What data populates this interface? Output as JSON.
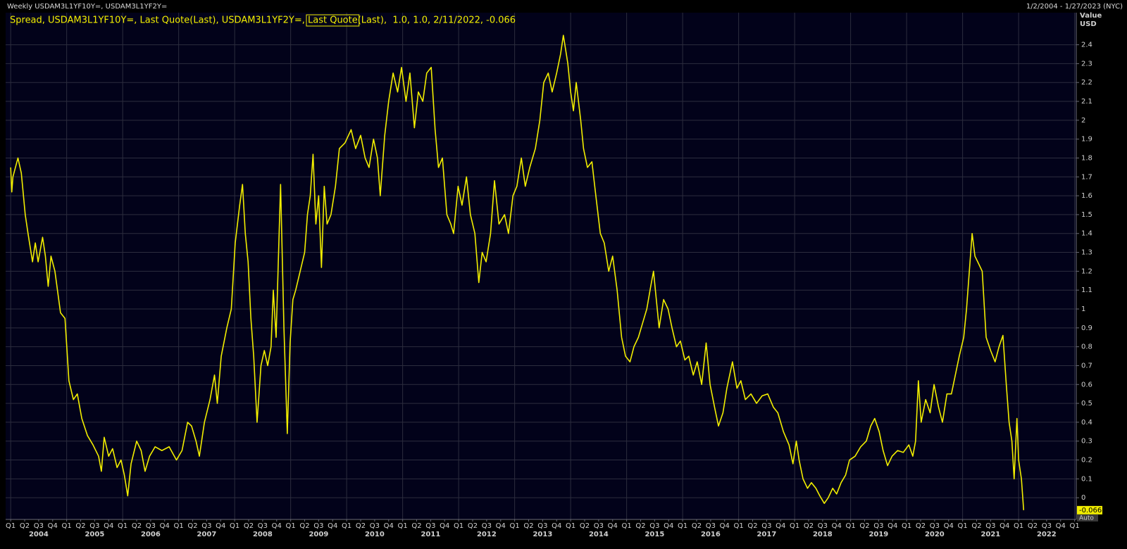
{
  "chart_data": {
    "type": "line",
    "header": "Weekly USDAM3L1YF10Y=, USDAM3L1YF2Y=",
    "date_range": "1/2/2004 - 1/27/2023 (NYC)",
    "legend_parts": [
      "Spread, USDAM3L1YF10Y=, Last Quote(Last), USDAM3L1YF2Y=, ",
      "Last Quote",
      "(Last),  1.0, 1.0, 2/11/2022, -0.066"
    ],
    "y_axis_label": [
      "Value",
      "USD"
    ],
    "auto_label": "Auto",
    "last_value_label": "-0.066",
    "color": "#f2ee00",
    "grid": true,
    "xlim": [
      2003.91,
      2023.03
    ],
    "ylim": [
      -0.115,
      2.57
    ],
    "yticks": [
      0,
      0.1,
      0.2,
      0.3,
      0.4,
      0.5,
      0.6,
      0.7,
      0.8,
      0.9,
      1,
      1.1,
      1.2,
      1.3,
      1.4,
      1.5,
      1.6,
      1.7,
      1.8,
      1.9,
      2,
      2.1,
      2.2,
      2.3,
      2.4
    ],
    "xticks": [
      {
        "value": 2004,
        "label": "Q1"
      },
      {
        "value": 2004.25,
        "label": "Q2"
      },
      {
        "value": 2004.5,
        "label": "Q3"
      },
      {
        "value": 2004.75,
        "label": "Q4"
      },
      {
        "value": 2005,
        "label": "Q1"
      },
      {
        "value": 2005.25,
        "label": "Q2"
      },
      {
        "value": 2005.5,
        "label": "Q3"
      },
      {
        "value": 2005.75,
        "label": "Q4"
      },
      {
        "value": 2006,
        "label": "Q1"
      },
      {
        "value": 2006.25,
        "label": "Q2"
      },
      {
        "value": 2006.5,
        "label": "Q3"
      },
      {
        "value": 2006.75,
        "label": "Q4"
      },
      {
        "value": 2007,
        "label": "Q1"
      },
      {
        "value": 2007.25,
        "label": "Q2"
      },
      {
        "value": 2007.5,
        "label": "Q3"
      },
      {
        "value": 2007.75,
        "label": "Q4"
      },
      {
        "value": 2008,
        "label": "Q1"
      },
      {
        "value": 2008.25,
        "label": "Q2"
      },
      {
        "value": 2008.5,
        "label": "Q3"
      },
      {
        "value": 2008.75,
        "label": "Q4"
      },
      {
        "value": 2009,
        "label": "Q1"
      },
      {
        "value": 2009.25,
        "label": "Q2"
      },
      {
        "value": 2009.5,
        "label": "Q3"
      },
      {
        "value": 2009.75,
        "label": "Q4"
      },
      {
        "value": 2010,
        "label": "Q1"
      },
      {
        "value": 2010.25,
        "label": "Q2"
      },
      {
        "value": 2010.5,
        "label": "Q3"
      },
      {
        "value": 2010.75,
        "label": "Q4"
      },
      {
        "value": 2011,
        "label": "Q1"
      },
      {
        "value": 2011.25,
        "label": "Q2"
      },
      {
        "value": 2011.5,
        "label": "Q3"
      },
      {
        "value": 2011.75,
        "label": "Q4"
      },
      {
        "value": 2012,
        "label": "Q1"
      },
      {
        "value": 2012.25,
        "label": "Q2"
      },
      {
        "value": 2012.5,
        "label": "Q3"
      },
      {
        "value": 2012.75,
        "label": "Q4"
      },
      {
        "value": 2013,
        "label": "Q1"
      },
      {
        "value": 2013.25,
        "label": "Q2"
      },
      {
        "value": 2013.5,
        "label": "Q3"
      },
      {
        "value": 2013.75,
        "label": "Q4"
      },
      {
        "value": 2014,
        "label": "Q1"
      },
      {
        "value": 2014.25,
        "label": "Q2"
      },
      {
        "value": 2014.5,
        "label": "Q3"
      },
      {
        "value": 2014.75,
        "label": "Q4"
      },
      {
        "value": 2015,
        "label": "Q1"
      },
      {
        "value": 2015.25,
        "label": "Q2"
      },
      {
        "value": 2015.5,
        "label": "Q3"
      },
      {
        "value": 2015.75,
        "label": "Q4"
      },
      {
        "value": 2016,
        "label": "Q1"
      },
      {
        "value": 2016.25,
        "label": "Q2"
      },
      {
        "value": 2016.5,
        "label": "Q3"
      },
      {
        "value": 2016.75,
        "label": "Q4"
      },
      {
        "value": 2017,
        "label": "Q1"
      },
      {
        "value": 2017.25,
        "label": "Q2"
      },
      {
        "value": 2017.5,
        "label": "Q3"
      },
      {
        "value": 2017.75,
        "label": "Q4"
      },
      {
        "value": 2018,
        "label": "Q1"
      },
      {
        "value": 2018.25,
        "label": "Q2"
      },
      {
        "value": 2018.5,
        "label": "Q3"
      },
      {
        "value": 2018.75,
        "label": "Q4"
      },
      {
        "value": 2019,
        "label": "Q1"
      },
      {
        "value": 2019.25,
        "label": "Q2"
      },
      {
        "value": 2019.5,
        "label": "Q3"
      },
      {
        "value": 2019.75,
        "label": "Q4"
      },
      {
        "value": 2020,
        "label": "Q1"
      },
      {
        "value": 2020.25,
        "label": "Q2"
      },
      {
        "value": 2020.5,
        "label": "Q3"
      },
      {
        "value": 2020.75,
        "label": "Q4"
      },
      {
        "value": 2021,
        "label": "Q1"
      },
      {
        "value": 2021.25,
        "label": "Q2"
      },
      {
        "value": 2021.5,
        "label": "Q3"
      },
      {
        "value": 2021.75,
        "label": "Q4"
      },
      {
        "value": 2022,
        "label": "Q1"
      },
      {
        "value": 2022.25,
        "label": "Q2"
      },
      {
        "value": 2022.5,
        "label": "Q3"
      },
      {
        "value": 2022.75,
        "label": "Q4"
      },
      {
        "value": 2023,
        "label": "Q1"
      }
    ],
    "year_labels": [
      {
        "value": 2004.5,
        "label": "2004"
      },
      {
        "value": 2005.5,
        "label": "2005"
      },
      {
        "value": 2006.5,
        "label": "2006"
      },
      {
        "value": 2007.5,
        "label": "2007"
      },
      {
        "value": 2008.5,
        "label": "2008"
      },
      {
        "value": 2009.5,
        "label": "2009"
      },
      {
        "value": 2010.5,
        "label": "2010"
      },
      {
        "value": 2011.5,
        "label": "2011"
      },
      {
        "value": 2012.5,
        "label": "2012"
      },
      {
        "value": 2013.5,
        "label": "2013"
      },
      {
        "value": 2014.5,
        "label": "2014"
      },
      {
        "value": 2015.5,
        "label": "2015"
      },
      {
        "value": 2016.5,
        "label": "2016"
      },
      {
        "value": 2017.5,
        "label": "2017"
      },
      {
        "value": 2018.5,
        "label": "2018"
      },
      {
        "value": 2019.5,
        "label": "2019"
      },
      {
        "value": 2020.5,
        "label": "2020"
      },
      {
        "value": 2021.5,
        "label": "2021"
      },
      {
        "value": 2022.5,
        "label": "2022"
      }
    ],
    "x": [
      2004.0,
      2004.02,
      2004.04,
      2004.13,
      2004.19,
      2004.26,
      2004.31,
      2004.39,
      2004.44,
      2004.49,
      2004.57,
      2004.62,
      2004.67,
      2004.72,
      2004.79,
      2004.89,
      2004.97,
      2005.04,
      2005.12,
      2005.19,
      2005.27,
      2005.37,
      2005.47,
      2005.57,
      2005.62,
      2005.67,
      2005.75,
      2005.82,
      2005.9,
      2005.97,
      2006.03,
      2006.09,
      2006.15,
      2006.25,
      2006.33,
      2006.4,
      2006.48,
      2006.58,
      2006.7,
      2006.83,
      2006.96,
      2007.06,
      2007.16,
      2007.23,
      2007.31,
      2007.37,
      2007.46,
      2007.56,
      2007.64,
      2007.69,
      2007.76,
      2007.86,
      2007.94,
      2008.01,
      2008.09,
      2008.14,
      2008.19,
      2008.24,
      2008.29,
      2008.34,
      2008.4,
      2008.47,
      2008.53,
      2008.59,
      2008.65,
      2008.69,
      2008.74,
      2008.82,
      2008.88,
      2008.94,
      2008.99,
      2009.04,
      2009.09,
      2009.17,
      2009.25,
      2009.3,
      2009.35,
      2009.4,
      2009.45,
      2009.5,
      2009.55,
      2009.6,
      2009.65,
      2009.72,
      2009.8,
      2009.87,
      2009.97,
      2010.08,
      2010.16,
      2010.25,
      2010.33,
      2010.4,
      2010.48,
      2010.55,
      2010.6,
      2010.68,
      2010.75,
      2010.83,
      2010.91,
      2010.98,
      2011.06,
      2011.13,
      2011.21,
      2011.28,
      2011.36,
      2011.43,
      2011.51,
      2011.58,
      2011.64,
      2011.71,
      2011.79,
      2011.86,
      2011.91,
      2011.99,
      2012.06,
      2012.14,
      2012.21,
      2012.29,
      2012.36,
      2012.42,
      2012.49,
      2012.57,
      2012.64,
      2012.72,
      2012.82,
      2012.89,
      2012.97,
      2013.04,
      2013.12,
      2013.19,
      2013.27,
      2013.37,
      2013.45,
      2013.52,
      2013.6,
      2013.67,
      2013.75,
      2013.82,
      2013.87,
      2013.95,
      2014.0,
      2014.05,
      2014.1,
      2014.18,
      2014.23,
      2014.3,
      2014.38,
      2014.45,
      2014.53,
      2014.6,
      2014.68,
      2014.75,
      2014.83,
      2014.91,
      2014.98,
      2015.06,
      2015.13,
      2015.21,
      2015.28,
      2015.36,
      2015.43,
      2015.48,
      2015.53,
      2015.58,
      2015.66,
      2015.74,
      2015.81,
      2015.89,
      2015.96,
      2016.04,
      2016.11,
      2016.19,
      2016.26,
      2016.34,
      2016.42,
      2016.49,
      2016.57,
      2016.64,
      2016.72,
      2016.79,
      2016.89,
      2016.97,
      2017.04,
      2017.12,
      2017.22,
      2017.32,
      2017.42,
      2017.52,
      2017.62,
      2017.7,
      2017.8,
      2017.9,
      2017.97,
      2018.03,
      2018.08,
      2018.15,
      2018.23,
      2018.3,
      2018.38,
      2018.45,
      2018.53,
      2018.6,
      2018.68,
      2018.75,
      2018.83,
      2018.91,
      2018.98,
      2019.08,
      2019.18,
      2019.28,
      2019.36,
      2019.43,
      2019.51,
      2019.58,
      2019.66,
      2019.74,
      2019.84,
      2019.94,
      2020.04,
      2020.11,
      2020.16,
      2020.21,
      2020.26,
      2020.34,
      2020.42,
      2020.49,
      2020.57,
      2020.64,
      2020.72,
      2020.8,
      2020.87,
      2020.94,
      2021.02,
      2021.07,
      2021.12,
      2021.17,
      2021.22,
      2021.27,
      2021.35,
      2021.42,
      2021.5,
      2021.58,
      2021.65,
      2021.72,
      2021.78,
      2021.83,
      2021.88,
      2021.92,
      2021.97,
      2022.0,
      2022.05,
      2022.09
    ],
    "values": [
      1.75,
      1.62,
      1.7,
      1.8,
      1.72,
      1.5,
      1.4,
      1.25,
      1.35,
      1.25,
      1.38,
      1.28,
      1.12,
      1.28,
      1.2,
      0.98,
      0.95,
      0.62,
      0.52,
      0.55,
      0.42,
      0.33,
      0.28,
      0.22,
      0.14,
      0.32,
      0.22,
      0.26,
      0.16,
      0.2,
      0.12,
      0.01,
      0.18,
      0.3,
      0.25,
      0.14,
      0.22,
      0.27,
      0.25,
      0.27,
      0.2,
      0.25,
      0.4,
      0.38,
      0.3,
      0.22,
      0.4,
      0.52,
      0.65,
      0.5,
      0.75,
      0.9,
      1.0,
      1.35,
      1.55,
      1.66,
      1.4,
      1.25,
      0.95,
      0.75,
      0.4,
      0.7,
      0.78,
      0.7,
      0.8,
      1.1,
      0.85,
      1.66,
      0.9,
      0.34,
      0.82,
      1.05,
      1.1,
      1.2,
      1.3,
      1.5,
      1.6,
      1.82,
      1.45,
      1.6,
      1.22,
      1.65,
      1.45,
      1.5,
      1.65,
      1.85,
      1.88,
      1.95,
      1.85,
      1.92,
      1.8,
      1.75,
      1.9,
      1.8,
      1.6,
      1.92,
      2.1,
      2.25,
      2.15,
      2.28,
      2.1,
      2.25,
      1.96,
      2.15,
      2.1,
      2.25,
      2.28,
      1.95,
      1.75,
      1.8,
      1.5,
      1.45,
      1.4,
      1.65,
      1.55,
      1.7,
      1.5,
      1.4,
      1.14,
      1.3,
      1.25,
      1.4,
      1.68,
      1.45,
      1.5,
      1.4,
      1.6,
      1.65,
      1.8,
      1.65,
      1.75,
      1.85,
      2.0,
      2.2,
      2.25,
      2.15,
      2.25,
      2.35,
      2.45,
      2.3,
      2.15,
      2.05,
      2.2,
      2.0,
      1.85,
      1.75,
      1.78,
      1.6,
      1.4,
      1.35,
      1.2,
      1.28,
      1.1,
      0.85,
      0.75,
      0.72,
      0.8,
      0.85,
      0.92,
      1.0,
      1.12,
      1.2,
      1.05,
      0.9,
      1.05,
      1.0,
      0.9,
      0.8,
      0.83,
      0.73,
      0.75,
      0.65,
      0.72,
      0.6,
      0.82,
      0.6,
      0.48,
      0.38,
      0.45,
      0.58,
      0.72,
      0.58,
      0.62,
      0.52,
      0.55,
      0.5,
      0.54,
      0.55,
      0.48,
      0.45,
      0.35,
      0.28,
      0.18,
      0.3,
      0.2,
      0.1,
      0.05,
      0.08,
      0.05,
      0.01,
      -0.03,
      0.0,
      0.05,
      0.02,
      0.08,
      0.12,
      0.2,
      0.22,
      0.27,
      0.3,
      0.38,
      0.42,
      0.35,
      0.25,
      0.17,
      0.22,
      0.25,
      0.24,
      0.28,
      0.22,
      0.3,
      0.62,
      0.4,
      0.52,
      0.45,
      0.6,
      0.48,
      0.4,
      0.55,
      0.55,
      0.65,
      0.75,
      0.85,
      1.0,
      1.2,
      1.4,
      1.28,
      1.25,
      1.2,
      0.85,
      0.78,
      0.72,
      0.8,
      0.86,
      0.6,
      0.4,
      0.3,
      0.1,
      0.42,
      0.2,
      0.1,
      -0.066
    ]
  }
}
